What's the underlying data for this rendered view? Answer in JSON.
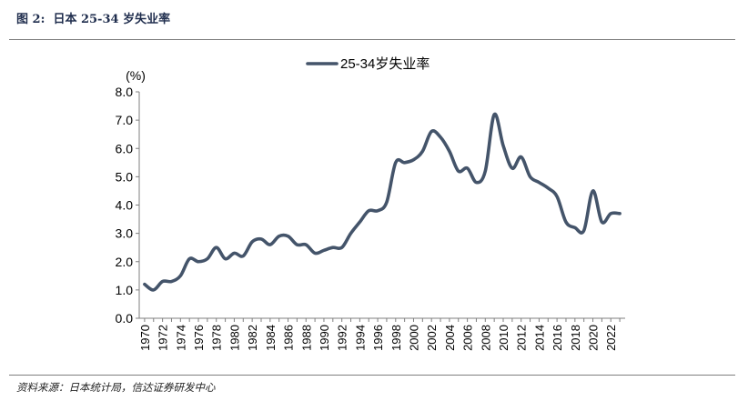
{
  "figure": {
    "label": "图 2:",
    "title": "日本 25-34 岁失业率",
    "source": "资料来源：日本统计局，信达证券研发中心"
  },
  "chart_data": {
    "type": "line",
    "title": "",
    "xlabel": "",
    "ylabel": "(%)",
    "ylim": [
      0,
      8
    ],
    "yticks": [
      "0.0",
      "1.0",
      "2.0",
      "3.0",
      "4.0",
      "5.0",
      "6.0",
      "7.0",
      "8.0"
    ],
    "xticks": [
      "1970",
      "1972",
      "1974",
      "1976",
      "1978",
      "1980",
      "1982",
      "1984",
      "1986",
      "1988",
      "1990",
      "1992",
      "1994",
      "1996",
      "1998",
      "2000",
      "2002",
      "2004",
      "2006",
      "2008",
      "2010",
      "2012",
      "2014",
      "2016",
      "2018",
      "2020",
      "2022"
    ],
    "legend_position": "top-center",
    "grid": false,
    "line_color": "#44546a",
    "series": [
      {
        "name": "25-34岁失业率",
        "x": [
          1970,
          1971,
          1972,
          1973,
          1974,
          1975,
          1976,
          1977,
          1978,
          1979,
          1980,
          1981,
          1982,
          1983,
          1984,
          1985,
          1986,
          1987,
          1988,
          1989,
          1990,
          1991,
          1992,
          1993,
          1994,
          1995,
          1996,
          1997,
          1998,
          1999,
          2000,
          2001,
          2002,
          2003,
          2004,
          2005,
          2006,
          2007,
          2008,
          2009,
          2010,
          2011,
          2012,
          2013,
          2014,
          2015,
          2016,
          2017,
          2018,
          2019,
          2020,
          2021,
          2022,
          2023
        ],
        "values": [
          1.2,
          1.0,
          1.3,
          1.3,
          1.5,
          2.1,
          2.0,
          2.1,
          2.5,
          2.1,
          2.3,
          2.2,
          2.7,
          2.8,
          2.6,
          2.9,
          2.9,
          2.6,
          2.6,
          2.3,
          2.4,
          2.5,
          2.5,
          3.0,
          3.4,
          3.8,
          3.8,
          4.1,
          5.5,
          5.5,
          5.6,
          5.9,
          6.6,
          6.4,
          5.9,
          5.2,
          5.3,
          4.8,
          5.2,
          7.2,
          6.1,
          5.3,
          5.7,
          5.0,
          4.8,
          4.6,
          4.3,
          3.4,
          3.2,
          3.1,
          4.5,
          3.4,
          3.7,
          3.7
        ]
      }
    ]
  }
}
